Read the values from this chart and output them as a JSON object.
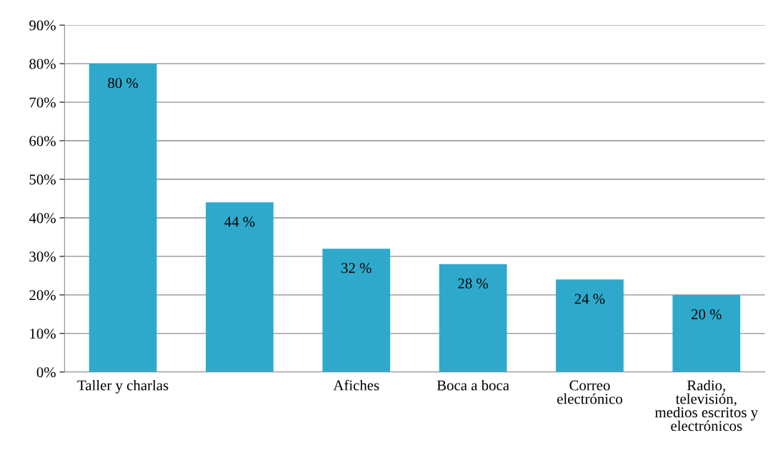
{
  "chart_data": {
    "type": "bar",
    "categories": [
      "Taller y charlas",
      null,
      "Afiches",
      "Boca a boca",
      "Correo\nelectrónico",
      "Radio,\ntelevisión,\nmedios escritos y\nelectrónicos"
    ],
    "values": [
      80,
      44,
      32,
      28,
      24,
      20
    ],
    "value_labels": [
      "80 %",
      "44 %",
      "32 %",
      "28 %",
      "24 %",
      "20 %"
    ],
    "color": "#2fa9cb",
    "ylim": [
      0,
      90
    ],
    "yticks": [
      {
        "value": 0,
        "label": "0%"
      },
      {
        "value": 10,
        "label": "10%"
      },
      {
        "value": 20,
        "label": "20%"
      },
      {
        "value": 30,
        "label": "30%"
      },
      {
        "value": 40,
        "label": "40%"
      },
      {
        "value": 50,
        "label": "50%"
      },
      {
        "value": 60,
        "label": "60%"
      },
      {
        "value": 70,
        "label": "70%"
      },
      {
        "value": 80,
        "label": "80%"
      },
      {
        "value": 90,
        "label": "90%"
      }
    ],
    "grid": "y",
    "legend": false
  }
}
